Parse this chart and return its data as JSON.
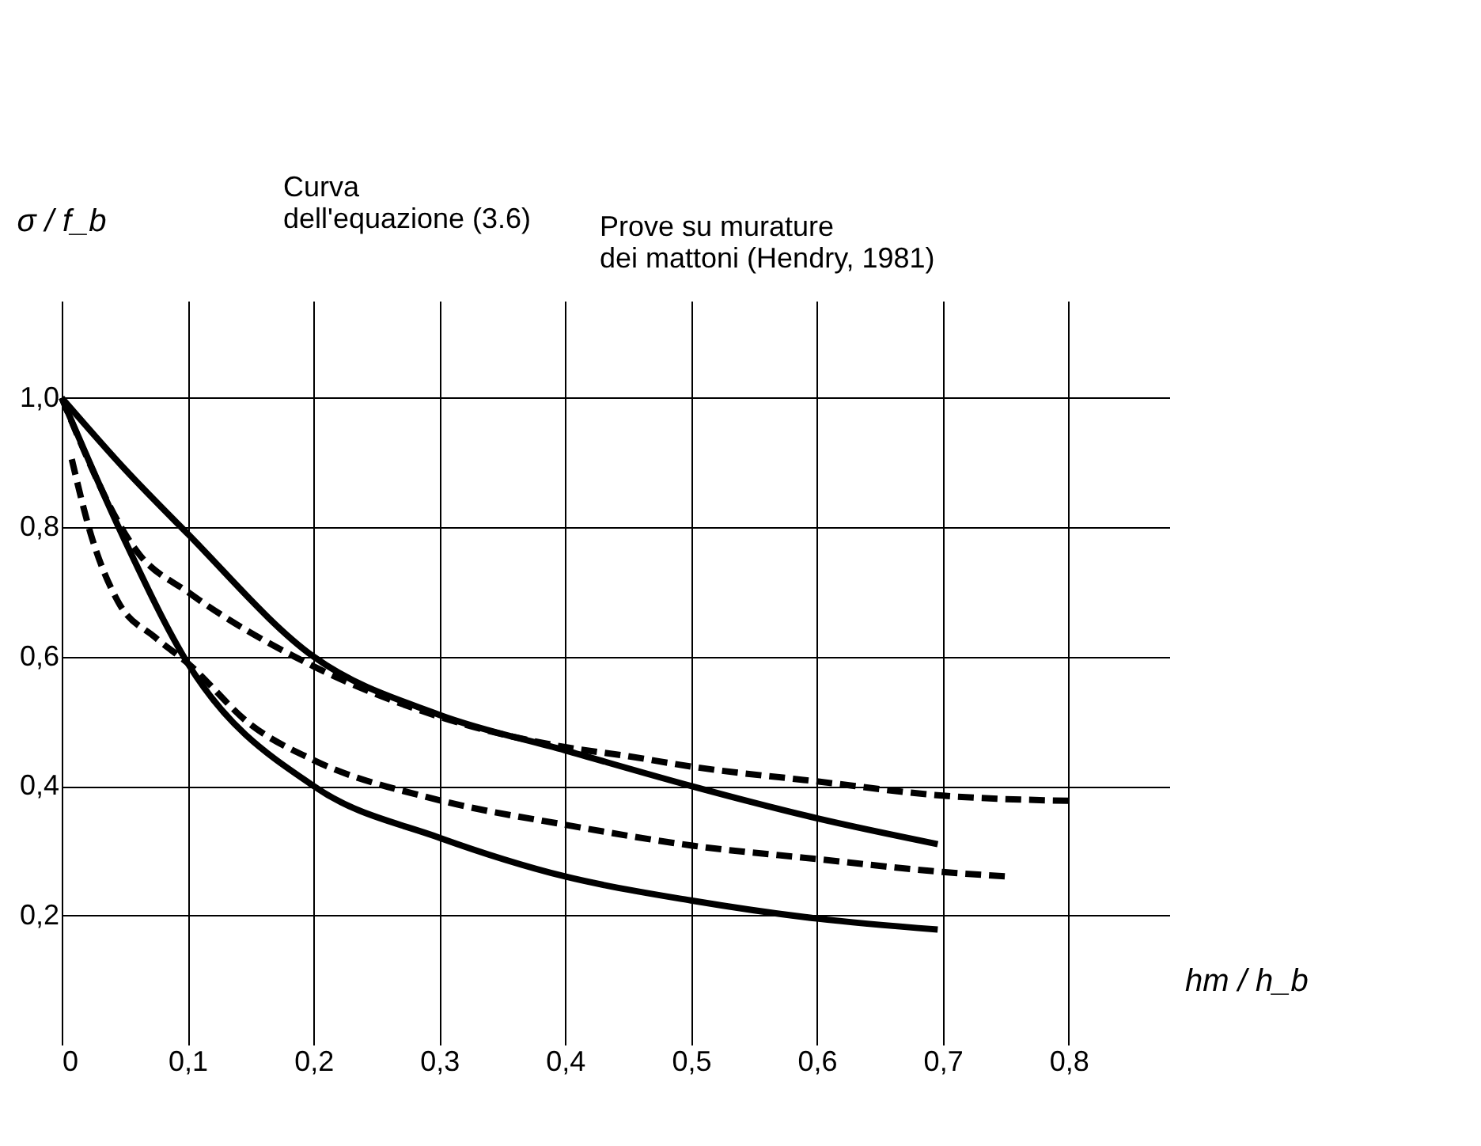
{
  "chart_data": {
    "type": "line",
    "xlabel": "hm / h_b",
    "ylabel": "σ / f_b",
    "xlim": [
      0,
      0.88
    ],
    "ylim": [
      0,
      1.15
    ],
    "xticks": [
      {
        "value": 0,
        "label": "0"
      },
      {
        "value": 0.1,
        "label": "0,1"
      },
      {
        "value": 0.2,
        "label": "0,2"
      },
      {
        "value": 0.3,
        "label": "0,3"
      },
      {
        "value": 0.4,
        "label": "0,4"
      },
      {
        "value": 0.5,
        "label": "0,5"
      },
      {
        "value": 0.6,
        "label": "0,6"
      },
      {
        "value": 0.7,
        "label": "0,7"
      },
      {
        "value": 0.8,
        "label": "0,8"
      }
    ],
    "yticks": [
      {
        "value": 0.2,
        "label": "0,2"
      },
      {
        "value": 0.4,
        "label": "0,4"
      },
      {
        "value": 0.6,
        "label": "0,6"
      },
      {
        "value": 0.8,
        "label": "0,8"
      },
      {
        "value": 1.0,
        "label": "1,0"
      }
    ],
    "grid": true,
    "marker": "none",
    "annotations": [
      "Curva\ndell'equazione (3.6)",
      "Prove su murature\ndei mattoni (Hendry, 1981)"
    ],
    "series": [
      {
        "color": "#000000",
        "line_style": "solid",
        "x": [
          0,
          0.05,
          0.1,
          0.2,
          0.3,
          0.4,
          0.5,
          0.6,
          0.696
        ],
        "values": [
          1.0,
          0.89,
          0.79,
          0.6,
          0.51,
          0.455,
          0.4,
          0.35,
          0.31
        ]
      },
      {
        "color": "#000000",
        "line_style": "dashed",
        "x": [
          0,
          0.062,
          0.1,
          0.2,
          0.3,
          0.4,
          0.45,
          0.5,
          0.6,
          0.7,
          0.8
        ],
        "values": [
          1.0,
          0.757,
          0.7,
          0.585,
          0.507,
          0.46,
          0.446,
          0.43,
          0.407,
          0.385,
          0.377
        ]
      },
      {
        "color": "#000000",
        "line_style": "solid",
        "x": [
          0,
          0.05,
          0.1,
          0.2,
          0.3,
          0.4,
          0.5,
          0.6,
          0.696
        ],
        "values": [
          1.0,
          0.78,
          0.59,
          0.4,
          0.32,
          0.26,
          0.223,
          0.195,
          0.178
        ]
      },
      {
        "color": "#000000",
        "line_style": "dashed",
        "x": [
          0.008,
          0.023,
          0.045,
          0.074,
          0.1,
          0.15,
          0.2,
          0.3,
          0.4,
          0.45,
          0.5,
          0.6,
          0.7,
          0.752
        ],
        "values": [
          0.905,
          0.79,
          0.684,
          0.63,
          0.59,
          0.495,
          0.44,
          0.378,
          0.34,
          0.323,
          0.308,
          0.287,
          0.267,
          0.26
        ]
      }
    ]
  }
}
